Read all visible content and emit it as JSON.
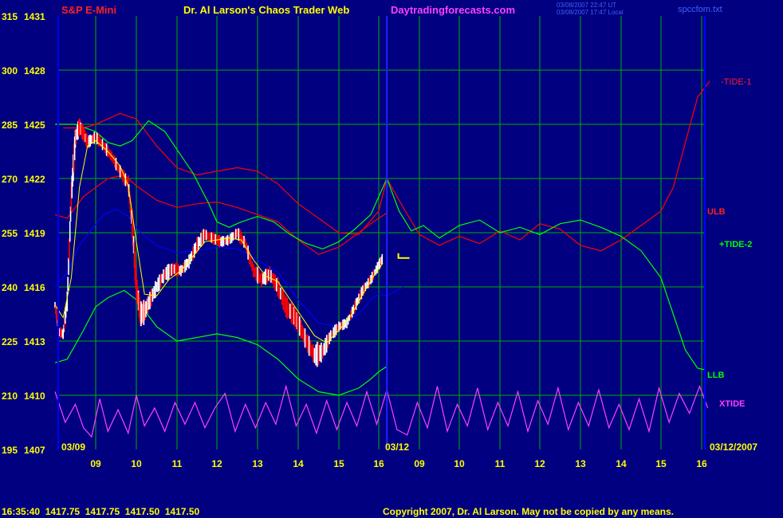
{
  "header": {
    "symbol": "S&P E-Mini",
    "title": "Dr. Al Larson's Chaos Trader Web",
    "site": "Daytradingforecasts.com",
    "stamp_ut": "03/08/2007 22:47 UT",
    "stamp_local": "03/08/2007 17:47 Local",
    "file": "spccfom.txt"
  },
  "footer": {
    "quote": "16:35:40  1417.75  1417.75  1417.50  1417.50",
    "copyright": "Copyright 2007, Dr. Al Larson. May not be copied by any means."
  },
  "date_labels": {
    "left": "03/09",
    "mid": "03/12",
    "right": "03/12/2007"
  },
  "colors": {
    "background": "#000080",
    "grid": "#00b000",
    "axis_text": "#ffff00",
    "tide1": "#ff0000",
    "tide2": "#00ff00",
    "xtide": "#ff40ff",
    "midline": "#0000ff",
    "price_up": "#ffffff",
    "price_down": "#ff0000",
    "average": "#ffff00"
  },
  "chart_data": {
    "type": "line",
    "y_left_ticks": [
      "315",
      "300",
      "285",
      "270",
      "255",
      "240",
      "225",
      "210",
      "195"
    ],
    "y_right_ticks": [
      "1431",
      "1428",
      "1425",
      "1422",
      "1419",
      "1416",
      "1413",
      "1410",
      "1407"
    ],
    "ylim": [
      1407,
      1431
    ],
    "x_hours": [
      "09",
      "10",
      "11",
      "12",
      "13",
      "14",
      "15",
      "16",
      "09",
      "10",
      "11",
      "12",
      "13",
      "14",
      "15",
      "16"
    ],
    "series_labels": [
      {
        "name": "-TIDE-1",
        "color": "#ff0000"
      },
      {
        "name": "ULB",
        "color": "#ff0000"
      },
      {
        "name": "+TIDE-2",
        "color": "#00ff00"
      },
      {
        "name": "LLB",
        "color": "#00ff00"
      },
      {
        "name": "XTIDE",
        "color": "#ff40ff"
      }
    ],
    "series": [
      {
        "name": "-TIDE-1",
        "x": [
          8.2,
          8.7,
          9.0,
          9.3,
          9.6,
          10.0,
          10.5,
          11.0,
          11.5,
          12.0,
          12.5,
          13.0,
          13.5,
          14.0,
          14.5,
          15.0,
          15.5,
          16.0,
          16.2,
          16.6,
          17.0,
          17.5,
          18.0,
          18.5,
          19.0,
          19.5,
          20.0,
          20.5,
          21.0,
          21.5,
          22.0,
          22.5,
          23.0,
          23.3,
          23.6,
          23.9,
          24.2
        ],
        "values": [
          1424.8,
          1424.8,
          1425.0,
          1425.3,
          1425.6,
          1425.3,
          1423.8,
          1422.6,
          1422.2,
          1422.4,
          1422.6,
          1422.4,
          1421.7,
          1420.6,
          1419.8,
          1419.0,
          1418.9,
          1420.2,
          1422.0,
          1420.4,
          1418.9,
          1418.3,
          1418.8,
          1418.4,
          1419.1,
          1418.6,
          1419.5,
          1419.2,
          1418.3,
          1418.0,
          1418.6,
          1419.4,
          1420.2,
          1421.5,
          1424.0,
          1426.5,
          1427.4
        ]
      },
      {
        "name": "ULB",
        "x": [
          8.0,
          8.3,
          8.7,
          9.0,
          9.3,
          9.7,
          10.0,
          10.5,
          11.0,
          11.5,
          12.0,
          12.5,
          13.0,
          13.5,
          14.0,
          14.5,
          15.0,
          15.5,
          15.8,
          16.0,
          16.2
        ],
        "values": [
          1420.0,
          1419.8,
          1421.0,
          1421.5,
          1422.0,
          1422.2,
          1421.6,
          1420.8,
          1420.4,
          1420.6,
          1420.7,
          1420.4,
          1420.0,
          1419.6,
          1418.6,
          1417.8,
          1418.2,
          1419.0,
          1419.5,
          1419.8,
          1420.1
        ]
      },
      {
        "name": "+TIDE-2",
        "x": [
          8.0,
          8.5,
          9.0,
          9.3,
          9.6,
          9.9,
          10.3,
          10.7,
          11.0,
          11.4,
          11.8,
          12.0,
          12.3,
          12.6,
          13.0,
          13.4,
          13.8,
          14.2,
          14.6,
          15.0,
          15.4,
          15.8,
          16.2,
          16.5,
          16.8,
          17.1,
          17.5,
          18.0,
          18.5,
          19.0,
          19.5,
          20.0,
          20.5,
          21.0,
          21.5,
          22.0,
          22.5,
          23.0,
          23.3,
          23.6,
          23.9,
          24.1
        ],
        "values": [
          1425.0,
          1425.0,
          1424.6,
          1424.0,
          1423.8,
          1424.1,
          1425.2,
          1424.6,
          1423.6,
          1422.3,
          1420.6,
          1419.6,
          1419.3,
          1419.6,
          1419.9,
          1419.6,
          1418.9,
          1418.4,
          1418.1,
          1418.5,
          1419.2,
          1420.0,
          1422.0,
          1420.2,
          1419.1,
          1419.4,
          1418.7,
          1419.4,
          1419.7,
          1419.0,
          1419.3,
          1418.9,
          1419.5,
          1419.7,
          1419.3,
          1418.8,
          1418.0,
          1416.5,
          1414.5,
          1412.5,
          1411.5,
          1411.4
        ]
      },
      {
        "name": "LLB",
        "x": [
          8.0,
          8.3,
          8.7,
          9.0,
          9.3,
          9.7,
          10.0,
          10.5,
          11.0,
          11.5,
          12.0,
          12.5,
          13.0,
          13.5,
          14.0,
          14.5,
          15.0,
          15.5,
          15.8,
          16.0,
          16.2
        ],
        "values": [
          1411.8,
          1412.0,
          1413.6,
          1414.9,
          1415.4,
          1415.8,
          1415.3,
          1413.8,
          1413.0,
          1413.2,
          1413.4,
          1413.2,
          1412.8,
          1412.0,
          1410.9,
          1410.2,
          1410.0,
          1410.4,
          1410.9,
          1411.3,
          1411.6
        ]
      },
      {
        "name": "midline",
        "x": [
          8.0,
          8.3,
          8.6,
          8.9,
          9.2,
          9.5,
          9.8,
          10.1,
          10.5,
          11.0,
          11.5,
          12.0,
          12.5,
          13.0,
          13.5,
          14.0,
          14.5,
          15.0,
          15.5,
          15.8,
          16.0,
          16.2,
          16.6
        ],
        "values": [
          1416.0,
          1416.8,
          1418.3,
          1419.2,
          1420.0,
          1420.3,
          1419.9,
          1419.0,
          1418.3,
          1417.9,
          1418.0,
          1418.2,
          1418.1,
          1417.5,
          1416.8,
          1415.3,
          1414.0,
          1413.8,
          1414.5,
          1415.3,
          1415.6,
          1415.5,
          1416.0
        ]
      },
      {
        "name": "price",
        "x": [
          8.0,
          8.1,
          8.2,
          8.3,
          8.4,
          8.5,
          8.6,
          8.7,
          8.8,
          9.0,
          9.2,
          9.4,
          9.6,
          9.8,
          9.9,
          10.0,
          10.1,
          10.2,
          10.3,
          10.5,
          10.7,
          10.9,
          11.1,
          11.3,
          11.5,
          11.7,
          11.9,
          12.1,
          12.3,
          12.5,
          12.7,
          12.9,
          13.1,
          13.3,
          13.5,
          13.7,
          13.9,
          14.0,
          14.2,
          14.4,
          14.6,
          14.8,
          15.0,
          15.2,
          15.4,
          15.6,
          15.8,
          16.0,
          16.1
        ],
        "values": [
          1415.0,
          1413.5,
          1413.4,
          1415.2,
          1421.0,
          1424.2,
          1424.9,
          1424.5,
          1424.0,
          1424.3,
          1423.8,
          1423.2,
          1422.4,
          1421.7,
          1419.5,
          1416.0,
          1414.5,
          1414.6,
          1415.1,
          1416.0,
          1416.7,
          1417.0,
          1416.9,
          1417.4,
          1418.3,
          1418.9,
          1418.7,
          1418.5,
          1418.6,
          1419.0,
          1418.4,
          1416.9,
          1416.4,
          1416.7,
          1416.0,
          1414.9,
          1414.4,
          1414.0,
          1413.0,
          1412.2,
          1412.4,
          1413.3,
          1413.8,
          1414.0,
          1414.9,
          1415.8,
          1416.4,
          1417.2,
          1417.6
        ],
        "spread": [
          0.6,
          0.6,
          0.7,
          1.2,
          1.6,
          1.0,
          0.9,
          0.8,
          0.7,
          0.7,
          0.7,
          0.7,
          0.8,
          1.0,
          1.6,
          1.4,
          1.4,
          1.0,
          1.0,
          0.9,
          0.9,
          0.8,
          0.7,
          0.8,
          0.9,
          0.6,
          0.7,
          0.6,
          0.6,
          0.8,
          0.8,
          0.9,
          0.9,
          0.9,
          1.1,
          1.2,
          1.1,
          1.1,
          1.1,
          1.4,
          1.0,
          0.7,
          0.6,
          0.6,
          0.7,
          0.6,
          0.6,
          0.6,
          0.6
        ]
      },
      {
        "name": "average",
        "x": [
          8.0,
          8.2,
          8.4,
          8.6,
          8.8,
          9.0,
          9.3,
          9.6,
          9.8,
          10.0,
          10.2,
          10.5,
          10.8,
          11.1,
          11.4,
          11.7,
          12.0,
          12.3,
          12.6,
          12.9,
          13.2,
          13.5,
          13.8,
          14.1,
          14.4,
          14.7,
          15.0,
          15.3,
          15.6,
          15.9,
          16.1
        ],
        "values": [
          1415.0,
          1414.3,
          1416.5,
          1421.5,
          1423.8,
          1424.1,
          1423.5,
          1422.7,
          1421.6,
          1418.5,
          1415.6,
          1415.5,
          1416.4,
          1416.9,
          1417.7,
          1418.5,
          1418.6,
          1418.7,
          1418.6,
          1417.5,
          1416.6,
          1416.3,
          1415.3,
          1414.3,
          1413.3,
          1412.9,
          1413.6,
          1414.4,
          1415.6,
          1416.7,
          1417.3
        ]
      },
      {
        "name": "XTIDE",
        "x": [
          8.0,
          8.25,
          8.5,
          8.7,
          8.9,
          9.1,
          9.3,
          9.55,
          9.8,
          10.0,
          10.2,
          10.45,
          10.7,
          10.95,
          11.2,
          11.45,
          11.7,
          11.95,
          12.2,
          12.45,
          12.7,
          12.95,
          13.2,
          13.45,
          13.7,
          13.95,
          14.2,
          14.45,
          14.7,
          14.95,
          15.2,
          15.45,
          15.7,
          15.95,
          16.2,
          16.45,
          16.7,
          16.95,
          17.2,
          17.45,
          17.7,
          17.95,
          18.2,
          18.45,
          18.7,
          18.95,
          19.2,
          19.45,
          19.7,
          19.95,
          20.2,
          20.45,
          20.7,
          20.95,
          21.2,
          21.45,
          21.7,
          21.95,
          22.2,
          22.45,
          22.7,
          22.95,
          23.2,
          23.45,
          23.7,
          23.95,
          24.15
        ],
        "values": [
          1410.2,
          1408.5,
          1409.5,
          1408.2,
          1407.7,
          1409.8,
          1408.0,
          1409.2,
          1407.9,
          1410.0,
          1408.3,
          1409.3,
          1408.0,
          1409.6,
          1408.4,
          1409.6,
          1408.2,
          1409.3,
          1410.1,
          1408.0,
          1409.5,
          1408.2,
          1409.6,
          1408.4,
          1410.5,
          1408.3,
          1409.5,
          1407.9,
          1409.7,
          1408.1,
          1409.6,
          1408.3,
          1410.2,
          1408.4,
          1410.3,
          1408.1,
          1407.8,
          1409.6,
          1408.2,
          1410.5,
          1408.0,
          1409.5,
          1408.3,
          1410.4,
          1408.1,
          1409.6,
          1408.3,
          1410.2,
          1408.0,
          1409.7,
          1408.4,
          1410.4,
          1408.1,
          1409.6,
          1408.3,
          1410.3,
          1408.2,
          1409.5,
          1408.1,
          1409.8,
          1408.0,
          1410.4,
          1408.5,
          1410.1,
          1409.0,
          1410.5,
          1409.3
        ]
      }
    ],
    "marker": {
      "type": "bracket",
      "x": 16.6,
      "value": 1417.6
    },
    "grid": true,
    "day_divider_x": 16.2
  }
}
